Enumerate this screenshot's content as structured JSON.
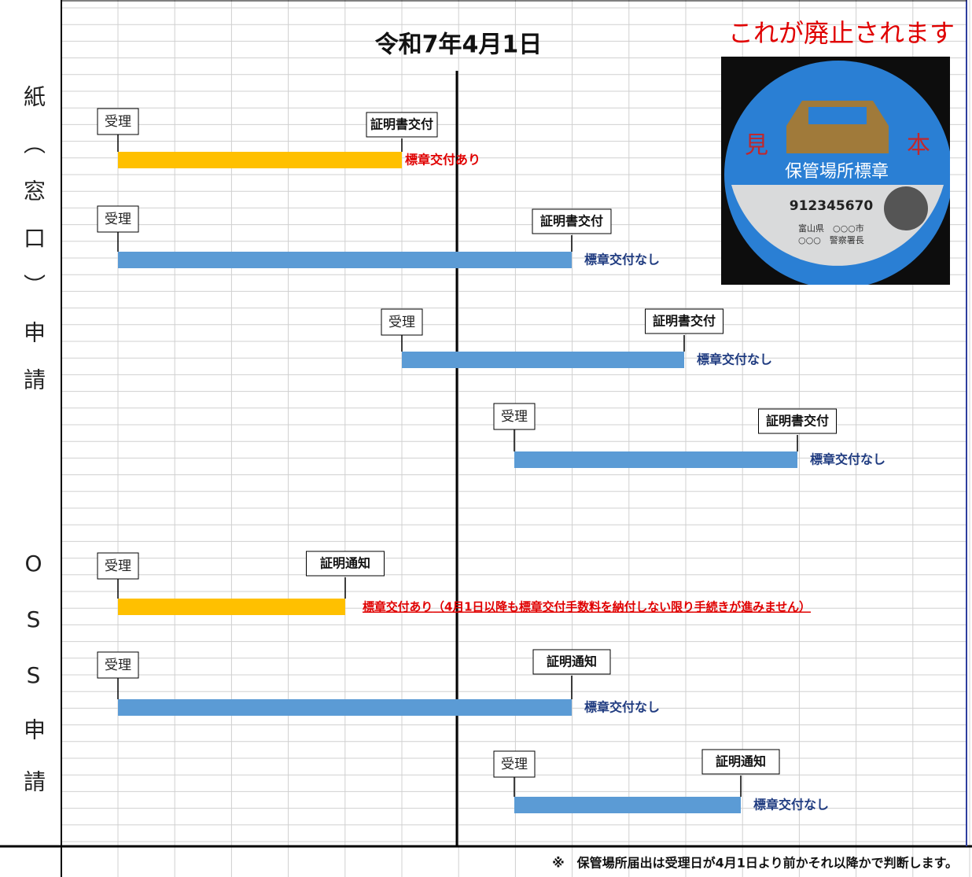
{
  "title": "令和7年4月1日",
  "notice": "これが廃止されます",
  "sections": [
    {
      "label": "紙（窓口）申請",
      "rows": [
        {
          "start": "受理",
          "end": "証明書交付",
          "note": "標章交付あり"
        },
        {
          "start": "受理",
          "end": "証明書交付",
          "note": "標章交付なし"
        },
        {
          "start": "受理",
          "end": "証明書交付",
          "note": "標章交付なし"
        },
        {
          "start": "受理",
          "end": "証明書交付",
          "note": "標章交付なし"
        }
      ]
    },
    {
      "label": "OSS申請",
      "rows": [
        {
          "start": "受理",
          "end": "証明通知",
          "note": "標章交付あり（4月1日以降も標章交付手数料を納付しない限り手続きが進みません）"
        },
        {
          "start": "受理",
          "end": "証明通知",
          "note": "標章交付なし"
        },
        {
          "start": "受理",
          "end": "証明通知",
          "note": "標章交付なし"
        }
      ]
    }
  ],
  "sticker": {
    "sample": [
      "見",
      "本"
    ],
    "name": "保管場所標章",
    "number": "912345670",
    "issuer": [
      "富山県　○○○市",
      "○○○　警察署長"
    ]
  },
  "footnote": "※　保管場所届出は受理日が4月1日より前かそれ以降かで判断します。"
}
